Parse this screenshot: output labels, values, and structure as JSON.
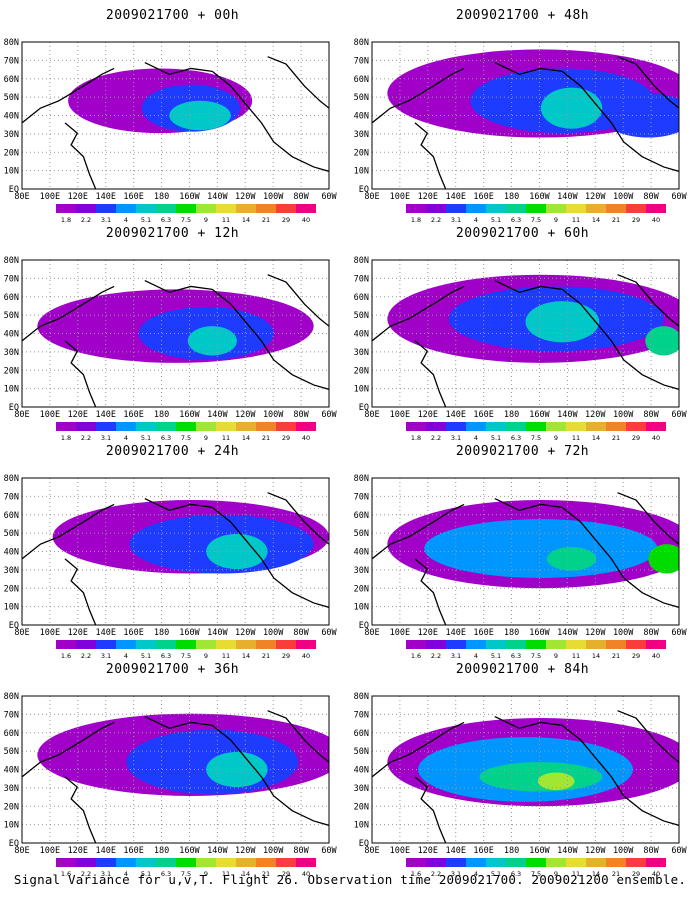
{
  "colorbar": {
    "labels": [
      "1.8",
      "2.2",
      "3.1",
      "4",
      "5.1",
      "6.3",
      "7.5",
      "9",
      "11",
      "14",
      "21",
      "29",
      "40"
    ],
    "colors": [
      "#a000c8",
      "#8200dc",
      "#1e3cff",
      "#0096ff",
      "#00c8c8",
      "#00d28c",
      "#00dc00",
      "#a0e632",
      "#e6dc32",
      "#e6af2d",
      "#f08228",
      "#fa3c3c",
      "#f00082"
    ],
    "first_label_alt": "1.6"
  },
  "axes": {
    "x_ticks": [
      "80E",
      "100E",
      "120E",
      "140E",
      "160E",
      "180",
      "160W",
      "140W",
      "120W",
      "100W",
      "80W",
      "60W"
    ],
    "y_ticks": [
      "80N",
      "70N",
      "60N",
      "50N",
      "40N",
      "30N",
      "20N",
      "10N",
      "EQ"
    ]
  },
  "panels": [
    {
      "title": "2009021700 + 00h"
    },
    {
      "title": "2009021700 + 48h"
    },
    {
      "title": "2009021700 + 12h"
    },
    {
      "title": "2009021700 + 60h"
    },
    {
      "title": "2009021700 + 24h"
    },
    {
      "title": "2009021700 + 72h"
    },
    {
      "title": "2009021700 + 36h"
    },
    {
      "title": "2009021700 + 84h"
    }
  ],
  "caption": "Signal Variance for u,v,T. Flight 26. Observation time 2009021700. 2009021200 ensemble."
}
